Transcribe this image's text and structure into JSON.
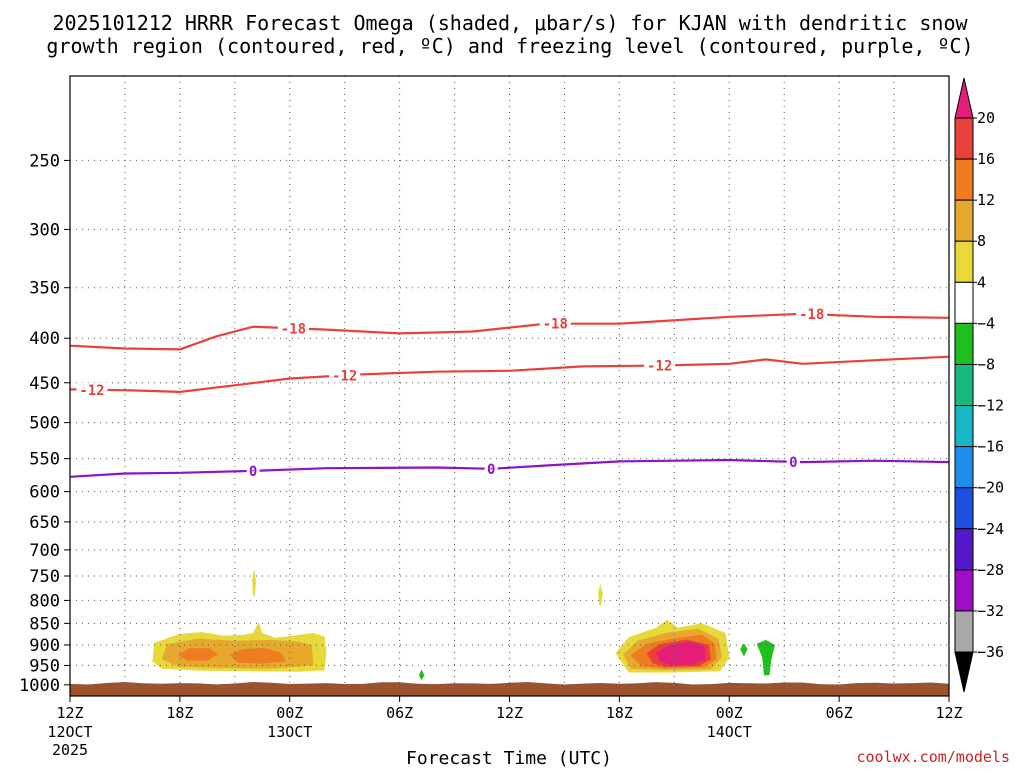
{
  "chart_data": {
    "type": "time-height contour",
    "title_line1": "2025101212 HRRR Forecast Omega (shaded, μbar/s) for KJAN with dendritic snow",
    "title_line2": "growth region (contoured, red, ºC) and freezing level (contoured, purple, ºC)",
    "xlabel": "Forecast Time (UTC)",
    "credit": "coolwx.com/models",
    "y_scale": "log-pressure",
    "ylim_hpa": [
      1030,
      200
    ],
    "xlim_hours": [
      0,
      48
    ],
    "y_ticks": [
      250,
      300,
      350,
      400,
      450,
      500,
      550,
      600,
      650,
      700,
      750,
      800,
      850,
      900,
      950,
      1000
    ],
    "x_ticks": [
      {
        "hour": 0,
        "label": "12Z",
        "sub1": "12OCT",
        "sub2": "2025"
      },
      {
        "hour": 6,
        "label": "18Z",
        "sub1": "",
        "sub2": ""
      },
      {
        "hour": 12,
        "label": "00Z",
        "sub1": "13OCT",
        "sub2": ""
      },
      {
        "hour": 18,
        "label": "06Z",
        "sub1": "",
        "sub2": ""
      },
      {
        "hour": 24,
        "label": "12Z",
        "sub1": "",
        "sub2": ""
      },
      {
        "hour": 30,
        "label": "18Z",
        "sub1": "",
        "sub2": ""
      },
      {
        "hour": 36,
        "label": "00Z",
        "sub1": "14OCT",
        "sub2": ""
      },
      {
        "hour": 42,
        "label": "06Z",
        "sub1": "",
        "sub2": ""
      },
      {
        "hour": 48,
        "label": "12Z",
        "sub1": "",
        "sub2": ""
      }
    ],
    "colorbar": {
      "levels": [
        20,
        16,
        12,
        8,
        4,
        -4,
        -8,
        -12,
        -16,
        -20,
        -24,
        -28,
        -32,
        -36
      ],
      "colors": [
        "#e51d78",
        "#e8413a",
        "#ee7d22",
        "#e7a92d",
        "#e7d93a",
        "#ffffff",
        "#1ebf1e",
        "#18b97c",
        "#17b7c5",
        "#1f8ee8",
        "#1d4fe0",
        "#5518c8",
        "#9d0ec4",
        "#a8a8a8",
        "#000000"
      ]
    },
    "contours": [
      {
        "name": "-18",
        "label": "-18",
        "color": "#e8413a",
        "points": [
          [
            0,
            408
          ],
          [
            3,
            411
          ],
          [
            6,
            412
          ],
          [
            8,
            398
          ],
          [
            10,
            388
          ],
          [
            14,
            391
          ],
          [
            18,
            395
          ],
          [
            22,
            393
          ],
          [
            26,
            385
          ],
          [
            30,
            385
          ],
          [
            36,
            378
          ],
          [
            40,
            375
          ],
          [
            44,
            378
          ],
          [
            48,
            379
          ]
        ],
        "label_hours": [
          12.2,
          26.5,
          40.5
        ]
      },
      {
        "name": "-12",
        "label": "-12",
        "color": "#e8413a",
        "points": [
          [
            0,
            458
          ],
          [
            3,
            459
          ],
          [
            6,
            461
          ],
          [
            9,
            453
          ],
          [
            12,
            445
          ],
          [
            16,
            440
          ],
          [
            20,
            437
          ],
          [
            24,
            436
          ],
          [
            28,
            431
          ],
          [
            32,
            430
          ],
          [
            36,
            428
          ],
          [
            38,
            423
          ],
          [
            40,
            428
          ],
          [
            44,
            424
          ],
          [
            48,
            420
          ]
        ],
        "label_hours": [
          1.2,
          15,
          32.2
        ]
      },
      {
        "name": "0",
        "label": "0",
        "color": "#8b14c7",
        "points": [
          [
            0,
            577
          ],
          [
            3,
            572
          ],
          [
            6,
            571
          ],
          [
            10,
            568
          ],
          [
            14,
            564
          ],
          [
            20,
            563
          ],
          [
            23,
            565
          ],
          [
            26,
            560
          ],
          [
            30,
            554
          ],
          [
            36,
            552
          ],
          [
            40,
            555
          ],
          [
            44,
            553
          ],
          [
            48,
            555
          ]
        ],
        "label_hours": [
          10,
          23,
          39.5
        ]
      }
    ],
    "shaded_regions": [
      {
        "name": "omega-4-day1",
        "level": 4,
        "color": "#e7d93a",
        "points": [
          [
            4.5,
            940
          ],
          [
            4.6,
            895
          ],
          [
            6,
            874
          ],
          [
            7.2,
            870
          ],
          [
            8.4,
            878
          ],
          [
            9.5,
            876
          ],
          [
            10,
            872
          ],
          [
            10.3,
            847
          ],
          [
            10.5,
            872
          ],
          [
            11.2,
            883
          ],
          [
            12.2,
            878
          ],
          [
            13.3,
            872
          ],
          [
            13.9,
            880
          ],
          [
            14,
            915
          ],
          [
            13.9,
            962
          ],
          [
            12.5,
            966
          ],
          [
            10,
            965
          ],
          [
            7,
            963
          ],
          [
            5,
            958
          ]
        ]
      },
      {
        "name": "omega-8-day1",
        "level": 8,
        "color": "#e7a92d",
        "points": [
          [
            5,
            935
          ],
          [
            5.3,
            898
          ],
          [
            7,
            885
          ],
          [
            9,
            890
          ],
          [
            11,
            888
          ],
          [
            12.5,
            892
          ],
          [
            13.2,
            900
          ],
          [
            13.3,
            950
          ],
          [
            11,
            958
          ],
          [
            8,
            956
          ],
          [
            6,
            954
          ]
        ]
      },
      {
        "name": "omega-12-day1a",
        "level": 12,
        "color": "#ee7d22",
        "points": [
          [
            5.9,
            925
          ],
          [
            6.5,
            908
          ],
          [
            7.6,
            908
          ],
          [
            8.1,
            922
          ],
          [
            7.5,
            938
          ],
          [
            6.4,
            938
          ]
        ]
      },
      {
        "name": "omega-12-day1b",
        "level": 12,
        "color": "#ee7d22",
        "points": [
          [
            8.7,
            925
          ],
          [
            9.4,
            910
          ],
          [
            10.6,
            907
          ],
          [
            11.5,
            918
          ],
          [
            11.8,
            940
          ],
          [
            10.5,
            946
          ],
          [
            9.2,
            943
          ]
        ]
      },
      {
        "name": "omega-4-spike1",
        "level": 4,
        "color": "#e7d93a",
        "points": [
          [
            9.95,
            758
          ],
          [
            10.05,
            735
          ],
          [
            10.15,
            758
          ],
          [
            10.1,
            790
          ],
          [
            10,
            790
          ]
        ]
      },
      {
        "name": "omega-4-spike2",
        "level": 4,
        "color": "#e7d93a",
        "points": [
          [
            28.85,
            785
          ],
          [
            28.95,
            765
          ],
          [
            29.1,
            785
          ],
          [
            29,
            810
          ],
          [
            28.9,
            810
          ]
        ]
      },
      {
        "name": "omega-4-day2",
        "level": 4,
        "color": "#e7d93a",
        "points": [
          [
            29.8,
            920
          ],
          [
            30.5,
            882
          ],
          [
            32,
            860
          ],
          [
            32.6,
            842
          ],
          [
            33.2,
            860
          ],
          [
            34.5,
            850
          ],
          [
            35.8,
            872
          ],
          [
            36,
            930
          ],
          [
            35.5,
            965
          ],
          [
            33,
            968
          ],
          [
            30.5,
            968
          ]
        ]
      },
      {
        "name": "omega-8-day2",
        "level": 8,
        "color": "#e7a92d",
        "points": [
          [
            30.2,
            922
          ],
          [
            31,
            890
          ],
          [
            32.5,
            872
          ],
          [
            34.3,
            862
          ],
          [
            35.4,
            885
          ],
          [
            35.6,
            930
          ],
          [
            35,
            960
          ],
          [
            32.5,
            962
          ],
          [
            30.6,
            958
          ]
        ]
      },
      {
        "name": "omega-12-day2",
        "level": 12,
        "color": "#ee7d22",
        "points": [
          [
            30.6,
            925
          ],
          [
            31.5,
            897
          ],
          [
            33,
            884
          ],
          [
            34.5,
            876
          ],
          [
            35.2,
            896
          ],
          [
            35.3,
            935
          ],
          [
            34.6,
            955
          ],
          [
            32.5,
            958
          ],
          [
            31.2,
            952
          ]
        ]
      },
      {
        "name": "omega-16-day2",
        "level": 16,
        "color": "#e8413a",
        "points": [
          [
            31.5,
            920
          ],
          [
            32.2,
            898
          ],
          [
            33.7,
            887
          ],
          [
            34.9,
            900
          ],
          [
            35,
            935
          ],
          [
            34.3,
            952
          ],
          [
            32.5,
            954
          ],
          [
            31.8,
            944
          ]
        ]
      },
      {
        "name": "omega-20-day2",
        "level": 20,
        "color": "#e51d78",
        "points": [
          [
            32,
            920
          ],
          [
            32.7,
            900
          ],
          [
            33.9,
            892
          ],
          [
            34.7,
            905
          ],
          [
            34.7,
            935
          ],
          [
            34,
            948
          ],
          [
            32.8,
            950
          ],
          [
            32.2,
            938
          ]
        ]
      },
      {
        "name": "omega-neg4-a",
        "level": -4,
        "color": "#1ebf1e",
        "points": [
          [
            36.6,
            910
          ],
          [
            36.8,
            896
          ],
          [
            37,
            910
          ],
          [
            36.8,
            928
          ]
        ]
      },
      {
        "name": "omega-neg4-b",
        "level": -4,
        "color": "#1ebf1e",
        "points": [
          [
            37.8,
            930
          ],
          [
            37.5,
            897
          ],
          [
            38,
            888
          ],
          [
            38.5,
            900
          ],
          [
            38.3,
            935
          ],
          [
            38.2,
            975
          ],
          [
            37.9,
            975
          ]
        ]
      },
      {
        "name": "omega-neg4-c",
        "level": -4,
        "color": "#1ebf1e",
        "points": [
          [
            19.05,
            975
          ],
          [
            19.2,
            960
          ],
          [
            19.35,
            975
          ],
          [
            19.2,
            988
          ]
        ]
      }
    ],
    "terrain": {
      "name": "ground",
      "color": "#a0522d",
      "top_hpa": 1000
    }
  }
}
